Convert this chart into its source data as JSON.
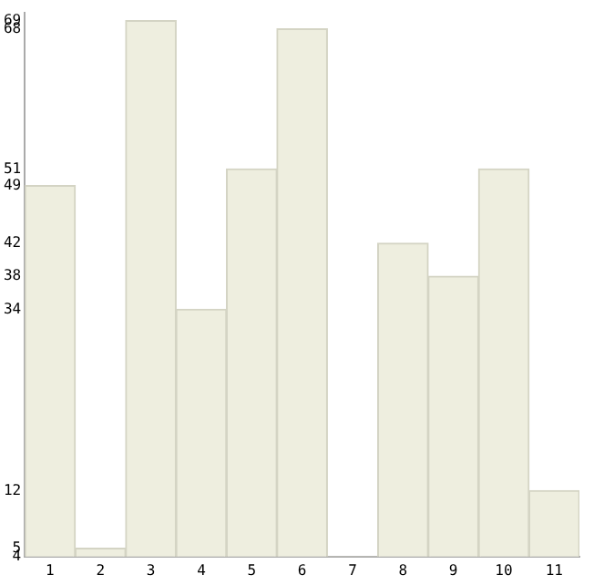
{
  "chart_data": {
    "type": "bar",
    "categories": [
      "1",
      "2",
      "3",
      "4",
      "5",
      "6",
      "7",
      "8",
      "9",
      "10",
      "11"
    ],
    "values": [
      49,
      5,
      69,
      34,
      51,
      68,
      4,
      42,
      38,
      51,
      12
    ],
    "color": "#eeeedf",
    "ylim": [
      4,
      70
    ],
    "yticks": [
      4,
      5,
      12,
      34,
      38,
      42,
      49,
      51,
      68,
      69
    ],
    "grid": false,
    "legend": false
  }
}
